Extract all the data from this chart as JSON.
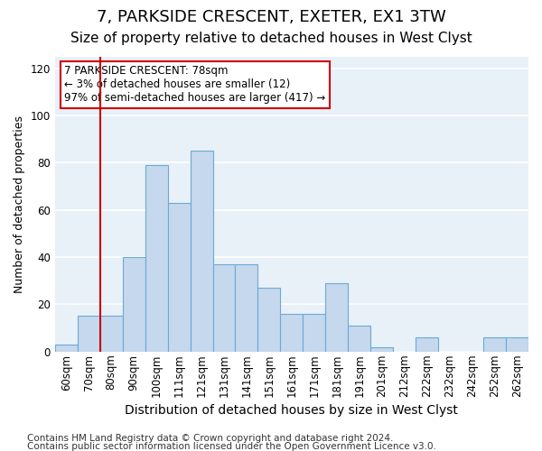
{
  "title1": "7, PARKSIDE CRESCENT, EXETER, EX1 3TW",
  "title2": "Size of property relative to detached houses in West Clyst",
  "xlabel": "Distribution of detached houses by size in West Clyst",
  "ylabel": "Number of detached properties",
  "categories": [
    "60sqm",
    "70sqm",
    "80sqm",
    "90sqm",
    "100sqm",
    "111sqm",
    "121sqm",
    "131sqm",
    "141sqm",
    "151sqm",
    "161sqm",
    "171sqm",
    "181sqm",
    "191sqm",
    "201sqm",
    "212sqm",
    "222sqm",
    "232sqm",
    "242sqm",
    "252sqm",
    "262sqm"
  ],
  "values": [
    3,
    15,
    15,
    40,
    79,
    63,
    85,
    37,
    37,
    27,
    16,
    16,
    29,
    11,
    2,
    0,
    6,
    0,
    0,
    6,
    6
  ],
  "bar_color": "#c5d8ed",
  "bar_edge_color": "#6aaad4",
  "annotation_title": "7 PARKSIDE CRESCENT: 78sqm",
  "annotation_line1": "← 3% of detached houses are smaller (12)",
  "annotation_line2": "97% of semi-detached houses are larger (417) →",
  "annotation_box_color": "#ffffff",
  "annotation_box_edge": "#cc0000",
  "vline_color": "#cc0000",
  "vline_x": 1.5,
  "ylim": [
    0,
    125
  ],
  "yticks": [
    0,
    20,
    40,
    60,
    80,
    100,
    120
  ],
  "footer1": "Contains HM Land Registry data © Crown copyright and database right 2024.",
  "footer2": "Contains public sector information licensed under the Open Government Licence v3.0.",
  "bg_color": "#ffffff",
  "plot_bg_color": "#e8f0f8",
  "grid_color": "#ffffff",
  "title1_fontsize": 13,
  "title2_fontsize": 11,
  "xlabel_fontsize": 10,
  "ylabel_fontsize": 9,
  "footer_fontsize": 7.5,
  "tick_fontsize": 8.5
}
